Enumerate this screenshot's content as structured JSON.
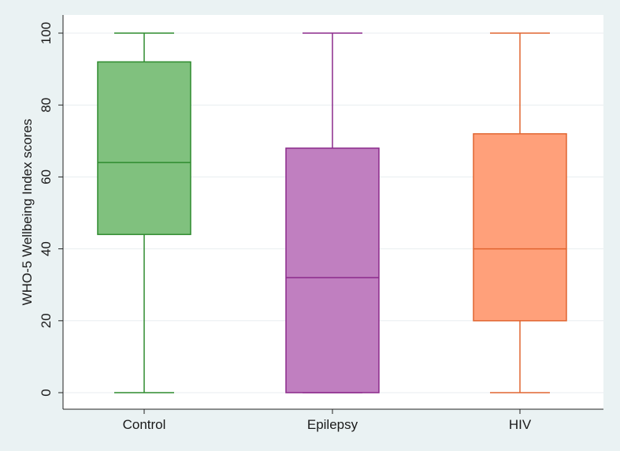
{
  "chart_data": {
    "type": "boxplot",
    "title": "",
    "xlabel": "",
    "ylabel": "WHO-5 Wellbeing Index scores",
    "ylim": [
      0,
      100
    ],
    "yticks": [
      0,
      20,
      40,
      60,
      80,
      100
    ],
    "grid": true,
    "legend": "none",
    "categories": [
      "Control",
      "Epilepsy",
      "HIV"
    ],
    "boxes": [
      {
        "category": "Control",
        "min": 0,
        "q1": 44,
        "median": 64,
        "q3": 92,
        "max": 100,
        "fill": "#80c17e",
        "stroke": "#2e8b2e"
      },
      {
        "category": "Epilepsy",
        "min": 0,
        "q1": 0,
        "median": 32,
        "q3": 68,
        "max": 100,
        "fill": "#c07fc0",
        "stroke": "#8b2a8b"
      },
      {
        "category": "HIV",
        "min": 0,
        "q1": 20,
        "median": 40,
        "q3": 72,
        "max": 100,
        "fill": "#ffa07a",
        "stroke": "#e06530"
      }
    ]
  }
}
